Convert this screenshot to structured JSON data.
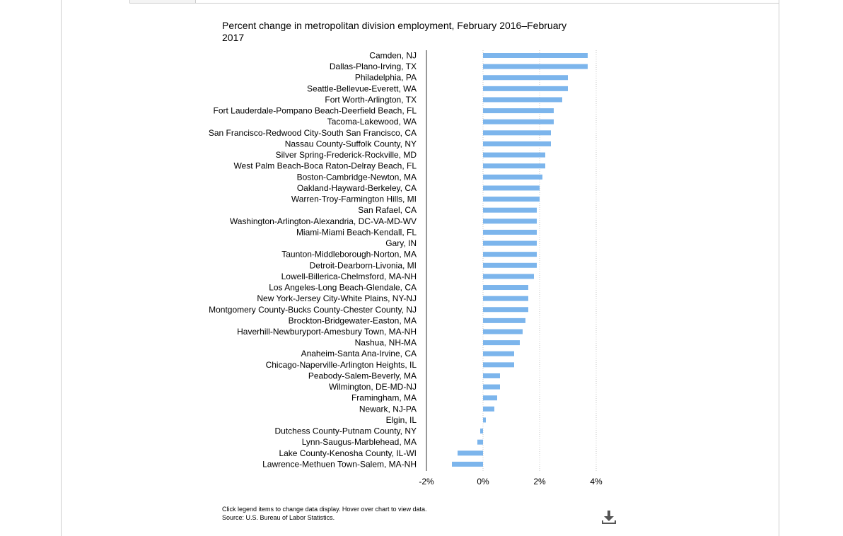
{
  "chart_data": {
    "type": "bar",
    "orientation": "horizontal",
    "title": "Percent change in metropolitan division employment, February 2016–February 2017",
    "xlabel": "",
    "ylabel": "",
    "xlim": [
      -2,
      4
    ],
    "x_ticks": [
      -2,
      0,
      2,
      4
    ],
    "x_tick_labels": [
      "-2%",
      "0%",
      "2%",
      "4%"
    ],
    "grid": "vertical-dotted",
    "bar_color": "#7cb5ec",
    "categories": [
      "Camden, NJ",
      "Dallas-Plano-Irving, TX",
      "Philadelphia, PA",
      "Seattle-Bellevue-Everett, WA",
      "Fort Worth-Arlington, TX",
      "Fort Lauderdale-Pompano Beach-Deerfield Beach, FL",
      "Tacoma-Lakewood, WA",
      "San Francisco-Redwood City-South San Francisco, CA",
      "Nassau County-Suffolk County, NY",
      "Silver Spring-Frederick-Rockville, MD",
      "West Palm Beach-Boca Raton-Delray Beach, FL",
      "Boston-Cambridge-Newton, MA",
      "Oakland-Hayward-Berkeley, CA",
      "Warren-Troy-Farmington Hills, MI",
      "San Rafael, CA",
      "Washington-Arlington-Alexandria, DC-VA-MD-WV",
      "Miami-Miami Beach-Kendall, FL",
      "Gary, IN",
      "Taunton-Middleborough-Norton, MA",
      "Detroit-Dearborn-Livonia, MI",
      "Lowell-Billerica-Chelmsford, MA-NH",
      "Los Angeles-Long Beach-Glendale, CA",
      "New York-Jersey City-White Plains, NY-NJ",
      "Montgomery County-Bucks County-Chester County, NJ",
      "Brockton-Bridgewater-Easton, MA",
      "Haverhill-Newburyport-Amesbury Town, MA-NH",
      "Nashua, NH-MA",
      "Anaheim-Santa Ana-Irvine, CA",
      "Chicago-Naperville-Arlington Heights, IL",
      "Peabody-Salem-Beverly, MA",
      "Wilmington, DE-MD-NJ",
      "Framingham, MA",
      "Newark, NJ-PA",
      "Elgin, IL",
      "Dutchess County-Putnam County, NY",
      "Lynn-Saugus-Marblehead, MA",
      "Lake County-Kenosha County, IL-WI",
      "Lawrence-Methuen Town-Salem, MA-NH"
    ],
    "values": [
      3.7,
      3.7,
      3.0,
      3.0,
      2.8,
      2.5,
      2.5,
      2.4,
      2.4,
      2.2,
      2.2,
      2.1,
      2.0,
      2.0,
      1.9,
      1.9,
      1.9,
      1.9,
      1.9,
      1.9,
      1.8,
      1.6,
      1.6,
      1.6,
      1.5,
      1.4,
      1.3,
      1.1,
      1.1,
      0.6,
      0.6,
      0.5,
      0.4,
      0.1,
      -0.1,
      -0.2,
      -0.9,
      -1.1
    ]
  },
  "footer": {
    "instructions": "Click legend items to change data display. Hover over chart to view data.",
    "source": "Source: U.S. Bureau of Labor Statistics."
  },
  "download": {
    "icon": "download-icon"
  }
}
